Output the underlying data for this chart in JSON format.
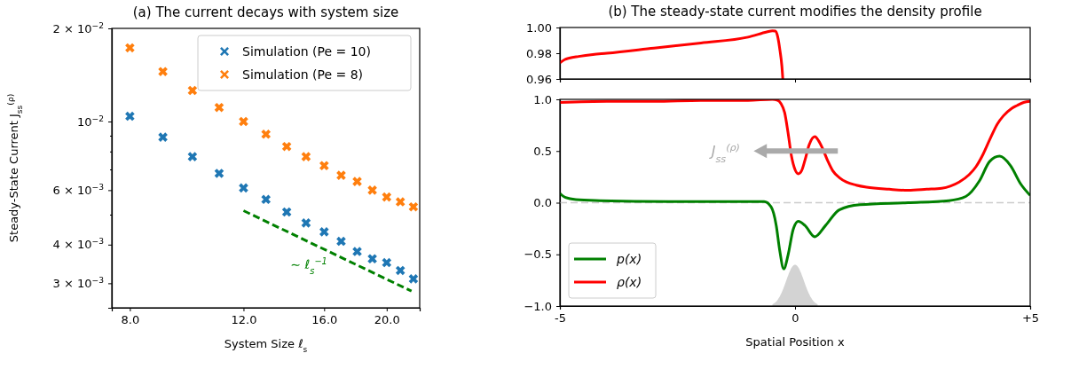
{
  "chart_data": [
    {
      "type": "scatter",
      "title": "(a) The current decays with system size",
      "xlabel": "System Size ℓ$_{s}$",
      "ylabel": "Steady-State Current  J$_{ss}$$^{(ρ)}$",
      "log": "xy",
      "marker": "cross",
      "legend": "top right",
      "xlim": [
        7.5,
        22.5
      ],
      "ylim": [
        0.0025,
        0.02
      ],
      "xticks": [
        {
          "value": 8,
          "label": "8.0"
        },
        {
          "value": 12,
          "label": "12.0"
        },
        {
          "value": 16,
          "label": "16.0"
        },
        {
          "value": 20,
          "label": "20.0"
        }
      ],
      "yticks": [
        {
          "value": 0.003,
          "label": "3 × 10$^{−3}$"
        },
        {
          "value": 0.004,
          "label": "4 × 10$^{−3}$"
        },
        {
          "value": 0.005,
          "label": null
        },
        {
          "value": 0.006,
          "label": "6 × 10$^{−3}$"
        },
        {
          "value": 0.007,
          "label": null
        },
        {
          "value": 0.008,
          "label": null
        },
        {
          "value": 0.009,
          "label": null
        },
        {
          "value": 0.01,
          "label": "10$^{−2}$"
        },
        {
          "value": 0.02,
          "label": "2 × 10$^{−2}$"
        }
      ],
      "annotations": [
        "∼ ℓ$_{s}$$^{−1}$"
      ],
      "x": [
        8,
        9,
        10,
        11,
        12,
        13,
        14,
        15,
        16,
        17,
        18,
        19,
        20,
        21,
        22
      ],
      "series": [
        {
          "name": "Simulation (Pe = 10)",
          "color": "#1f77b4",
          "values": [
            0.0104,
            0.0089,
            0.0077,
            0.0068,
            0.0061,
            0.0056,
            0.0051,
            0.0047,
            0.0044,
            0.0041,
            0.0038,
            0.0036,
            0.0035,
            0.0033,
            0.0031
          ]
        },
        {
          "name": "Simulation (Pe = 8)",
          "color": "#ff7f0e",
          "values": [
            0.0173,
            0.0145,
            0.0126,
            0.0111,
            0.01,
            0.0091,
            0.0083,
            0.0077,
            0.0072,
            0.0067,
            0.0064,
            0.006,
            0.0057,
            0.0055,
            0.0053
          ]
        },
        {
          "type": "line",
          "color": "#008000",
          "line_style": "dashed",
          "marker": "none",
          "x": [
            12,
            21.85
          ],
          "values": [
            0.00515,
            0.00283
          ]
        }
      ]
    },
    {
      "type": "line",
      "title": "(b) The steady-state current modifies the density profile",
      "xlim": [
        -5,
        5
      ],
      "xticks": [
        -5,
        0,
        5
      ],
      "ylim": [
        0.96,
        1.0
      ],
      "yticks": [
        {
          "value": 0.96,
          "label": "0.96"
        },
        {
          "value": 0.98,
          "label": "0.98"
        },
        {
          "value": 1,
          "label": "1.00"
        }
      ],
      "tick_labels": "y",
      "series": [
        {
          "color": "#ff0000",
          "x": [
            -5,
            -4.9,
            -4.8,
            -4.6,
            -4.3,
            -4,
            -3,
            -2,
            -1,
            -0.6,
            -0.48,
            -0.42,
            -0.37,
            -0.32,
            -0.28,
            -0.26
          ],
          "values": [
            0.9725,
            0.975,
            0.9762,
            0.9775,
            0.979,
            0.98,
            0.984,
            0.988,
            0.9925,
            0.9965,
            0.9975,
            0.9972,
            0.993,
            0.982,
            0.97,
            0.96
          ]
        }
      ]
    },
    {
      "type": "line",
      "xlabel": "Spatial Position x",
      "legend": "bottom left",
      "xlim": [
        -5,
        5
      ],
      "xticks": [
        {
          "value": -5,
          "label": "-5"
        },
        0,
        {
          "value": 5,
          "label": "+5"
        }
      ],
      "ylim": [
        -1,
        1
      ],
      "yticks": [
        {
          "value": -1,
          "label": "−1.0"
        },
        {
          "value": -0.5,
          "label": "−0.5"
        },
        {
          "value": 0,
          "label": "0.0"
        },
        {
          "value": 0.5,
          "label": "0.5"
        },
        {
          "value": 1,
          "label": "1.0"
        }
      ],
      "ref_lines": [
        {
          "axis": "y",
          "value": 0,
          "color": "#cccccc",
          "line_style": "dashed"
        }
      ],
      "annotations": [
        "J$_{ss}$$^{(ρ)}$"
      ],
      "series": [
        {
          "name": "p(x)",
          "color": "#008000",
          "x": [
            -5,
            -4.88,
            -4.66,
            -4.15,
            -2.69,
            -0.66,
            -0.51,
            -0.4,
            -0.33,
            -0.24,
            -0.15,
            -0.04,
            0.07,
            0.21,
            0.42,
            0.65,
            0.94,
            1.38,
            2.4,
            3.27,
            3.63,
            3.92,
            4.14,
            4.35,
            4.58,
            4.8,
            5
          ],
          "values": [
            0.09,
            0.05,
            0.03,
            0.02,
            0.01,
            0.01,
            -0.04,
            -0.22,
            -0.45,
            -0.64,
            -0.51,
            -0.26,
            -0.18,
            -0.22,
            -0.33,
            -0.22,
            -0.07,
            -0.02,
            0,
            0.02,
            0.06,
            0.21,
            0.4,
            0.45,
            0.36,
            0.18,
            0.07
          ]
        },
        {
          "name": "ρ(x)",
          "color": "#ff0000",
          "x": [
            -5,
            -4,
            -3,
            -2,
            -1,
            -0.48,
            -0.37,
            -0.3,
            -0.22,
            -0.15,
            -0.076,
            0,
            0.07,
            0.14,
            0.21,
            0.3,
            0.42,
            0.5,
            0.58,
            0.7,
            0.8,
            0.95,
            1.09,
            1.3,
            1.52,
            2,
            2.4,
            2.8,
            3.12,
            3.3,
            3.49,
            3.7,
            3.85,
            4,
            4.14,
            4.3,
            4.43,
            4.6,
            4.72,
            4.86,
            5
          ],
          "values": [
            0.97,
            0.98,
            0.98,
            0.99,
            0.99,
            1.0,
            0.99,
            0.96,
            0.87,
            0.68,
            0.45,
            0.32,
            0.28,
            0.31,
            0.41,
            0.56,
            0.64,
            0.6,
            0.53,
            0.4,
            0.31,
            0.24,
            0.2,
            0.17,
            0.15,
            0.13,
            0.12,
            0.13,
            0.14,
            0.16,
            0.2,
            0.27,
            0.35,
            0.47,
            0.61,
            0.76,
            0.84,
            0.91,
            0.94,
            0.97,
            0.98
          ]
        }
      ]
    }
  ]
}
